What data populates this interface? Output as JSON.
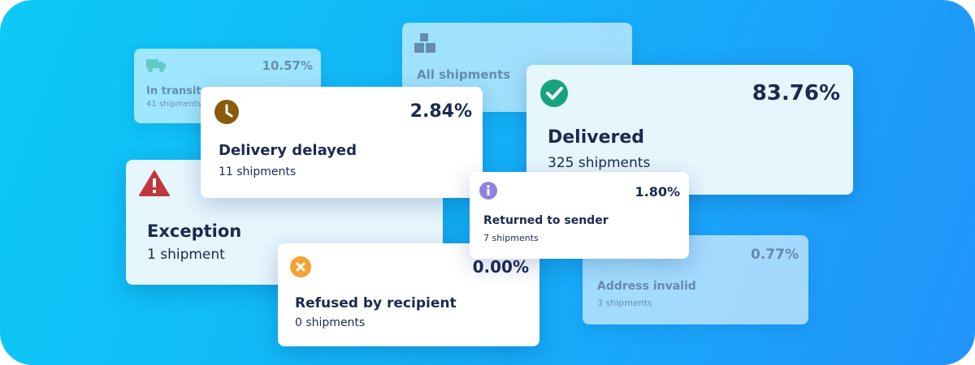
{
  "cards": [
    {
      "title": "In transit",
      "percent": "10.57%",
      "shipments": "41 shipments"
    },
    {
      "title": "All shipments"
    },
    {
      "title": "Delivered",
      "percent": "83.76%",
      "shipments": "325 shipments"
    },
    {
      "title": "Delivery delayed",
      "percent": "2.84%",
      "shipments": "11 shipments"
    },
    {
      "title": "Exception",
      "shipments": "1 shipment"
    },
    {
      "title": "Address invalid",
      "percent": "0.77%",
      "shipments": "3 shipments"
    },
    {
      "title": "Returned to sender",
      "percent": "1.80%",
      "shipments": "7 shipments"
    },
    {
      "title": "Refused by recipient",
      "percent": "0.00%",
      "shipments": "0 shipments"
    }
  ]
}
